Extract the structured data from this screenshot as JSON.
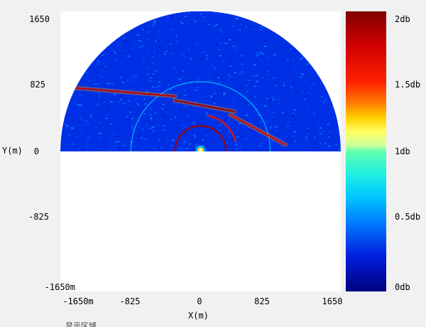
{
  "chart_data": {
    "type": "heatmap",
    "projection": "polar half-disk (upper half), centered at origin",
    "xlabel": "X(m)",
    "ylabel": "Y(m)",
    "xlim": [
      -1650,
      1650
    ],
    "ylim": [
      -1650,
      1650
    ],
    "x_ticks": [
      "-1650m",
      "-825",
      "0",
      "825",
      "1650"
    ],
    "y_ticks": [
      "1650",
      "825",
      "0",
      "-825",
      "-1650m"
    ],
    "range_max_m": 1650,
    "colorbar": {
      "colormap": "jet",
      "range": [
        0,
        2
      ],
      "unit": "db",
      "ticks": [
        "2db",
        "1.5db",
        "1db",
        "0.5db",
        "0db"
      ]
    },
    "background_level_db": 0.3,
    "features": [
      {
        "kind": "ring",
        "radius_m": 300,
        "angle_range_deg": [
          0,
          180
        ],
        "level_db": 1.9
      },
      {
        "kind": "ring",
        "radius_m": 430,
        "angle_range_deg": [
          15,
          80
        ],
        "level_db": 1.6
      },
      {
        "kind": "ring",
        "radius_m": 820,
        "angle_range_deg": [
          0,
          180
        ],
        "level_db": 0.7
      },
      {
        "kind": "band",
        "from": [
          -1500,
          750
        ],
        "to": [
          -300,
          650
        ],
        "level_db": 1.8
      },
      {
        "kind": "band",
        "from": [
          -300,
          600
        ],
        "to": [
          400,
          470
        ],
        "level_db": 1.9
      },
      {
        "kind": "band",
        "from": [
          350,
          430
        ],
        "to": [
          1000,
          80
        ],
        "level_db": 1.7
      },
      {
        "kind": "hotspot",
        "x": 0,
        "y": 15,
        "level_db": 1.2
      }
    ]
  },
  "axes": {
    "xlabel": "X(m)",
    "ylabel": "Y(m)"
  },
  "footer": {
    "text": "显示区域"
  }
}
